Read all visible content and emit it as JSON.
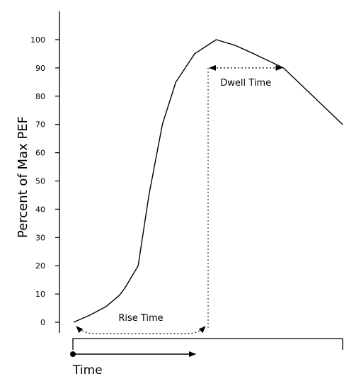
{
  "chart_data": {
    "type": "line",
    "title": "",
    "ylabel": "Percent of Max PEF",
    "xlabel": "Time",
    "ylim": [
      0,
      100
    ],
    "yticks": [
      0,
      10,
      20,
      30,
      40,
      50,
      60,
      70,
      80,
      90,
      100
    ],
    "x_axis_numeric": false,
    "series": [
      {
        "x": [
          0,
          6,
          12,
          17,
          19,
          24,
          28,
          33,
          38,
          45,
          53,
          60,
          67,
          78,
          100
        ],
        "y": [
          0,
          2.5,
          5.5,
          9.5,
          12,
          20,
          45,
          70,
          85,
          95,
          100,
          98,
          95,
          90,
          70
        ]
      }
    ],
    "annotations": [
      {
        "label": "Rise Time",
        "from_x": 0,
        "to_x": 50,
        "y": -2,
        "style": "dotted-double-arrow"
      },
      {
        "label": "Dwell Time",
        "from_x": 50,
        "to_x": 78,
        "y": 90,
        "style": "dotted-double-arrow"
      }
    ],
    "reference_lines": [
      {
        "type": "vertical",
        "x": 50,
        "from_y": -2,
        "to_y": 90,
        "style": "dotted"
      }
    ]
  }
}
